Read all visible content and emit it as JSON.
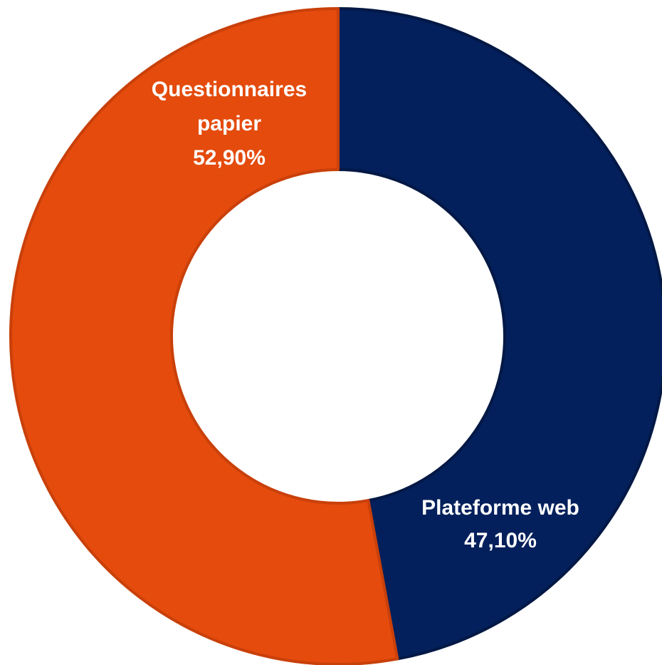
{
  "chart_data": {
    "type": "pie",
    "variant": "donut",
    "title": "",
    "slices": [
      {
        "name": "Plateforme web",
        "value": 47.1,
        "value_label": "47,10%",
        "label_lines": [
          "Plateforme web"
        ],
        "color": "#03205c",
        "border_color": "#021845"
      },
      {
        "name": "Questionnaires papier",
        "value": 52.9,
        "value_label": "52,90%",
        "label_lines": [
          "Questionnaires",
          "papier"
        ],
        "color": "#e44b0c",
        "border_color": "#c9400a"
      }
    ],
    "start_angle_deg": 0,
    "direction": "clockwise",
    "legend": "none",
    "data_labels": "inside"
  }
}
